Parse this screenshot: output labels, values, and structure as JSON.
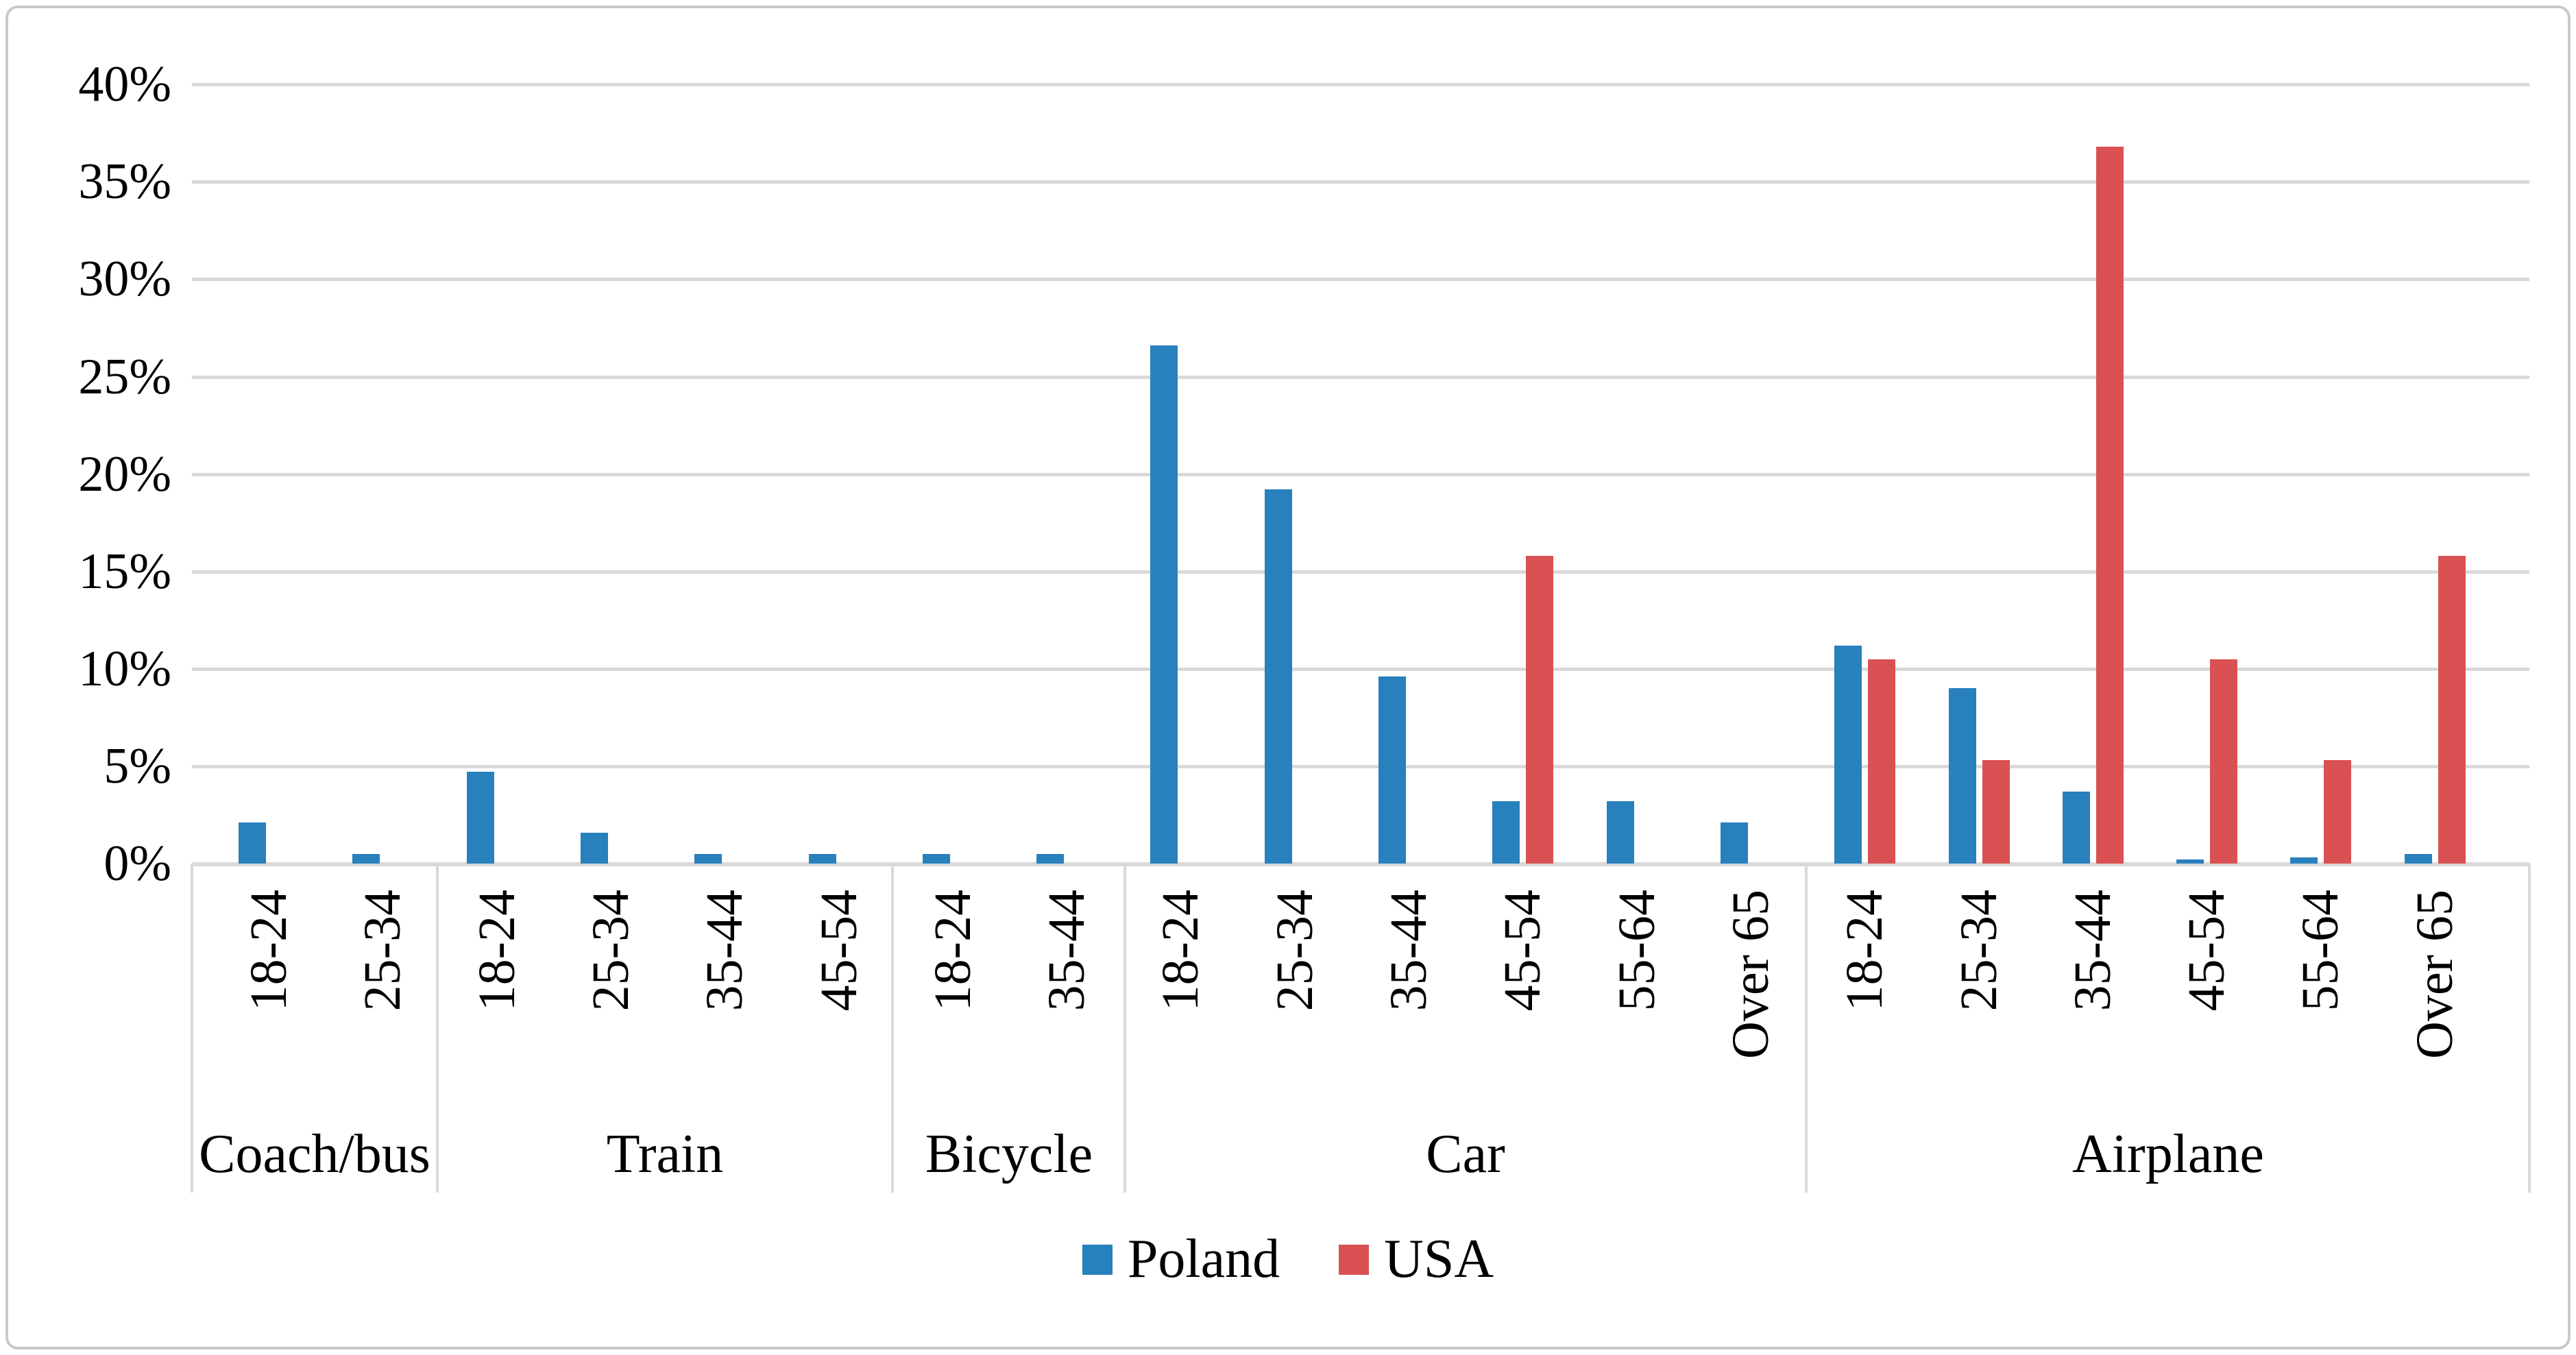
{
  "chart_data": {
    "type": "bar",
    "title": "",
    "xlabel": "",
    "ylabel": "",
    "ylim": [
      0,
      40
    ],
    "grid": true,
    "legend_position": "bottom",
    "yticks": [
      "0%",
      "5%",
      "10%",
      "15%",
      "20%",
      "25%",
      "30%",
      "35%",
      "40%"
    ],
    "series": [
      {
        "name": "Poland",
        "color": "#2880BD"
      },
      {
        "name": "USA",
        "color": "#D95152"
      }
    ],
    "groups": [
      {
        "label": "Coach/bus",
        "categories": [
          "18-24",
          "25-34"
        ],
        "poland": [
          2.1,
          0.5
        ],
        "usa": [
          0,
          0
        ]
      },
      {
        "label": "Train",
        "categories": [
          "18-24",
          "25-34",
          "35-44",
          "45-54"
        ],
        "poland": [
          4.7,
          1.6,
          0.5,
          0.5
        ],
        "usa": [
          0,
          0,
          0,
          0
        ]
      },
      {
        "label": "Bicycle",
        "categories": [
          "18-24",
          "35-44"
        ],
        "poland": [
          0.5,
          0.5
        ],
        "usa": [
          0,
          0
        ]
      },
      {
        "label": "Car",
        "categories": [
          "18-24",
          "25-34",
          "35-44",
          "45-54",
          "55-64",
          "Over 65"
        ],
        "poland": [
          26.6,
          19.2,
          9.6,
          3.2,
          3.2,
          2.1
        ],
        "usa": [
          0,
          0,
          0,
          15.8,
          0,
          0
        ]
      },
      {
        "label": "Airplane",
        "categories": [
          "18-24",
          "25-34",
          "35-44",
          "45-54",
          "55-64",
          "Over 65"
        ],
        "poland": [
          11.2,
          9.0,
          3.7,
          0.2,
          0.3,
          0.5
        ],
        "usa": [
          10.5,
          5.3,
          36.8,
          10.5,
          5.3,
          15.8
        ]
      }
    ],
    "colors": {
      "gridline": "#d9d9d9",
      "axis": "#d9d9d9",
      "border": "#c9c9c9",
      "text": "#000000"
    }
  },
  "legend": {
    "poland_label": "Poland",
    "usa_label": "USA"
  }
}
